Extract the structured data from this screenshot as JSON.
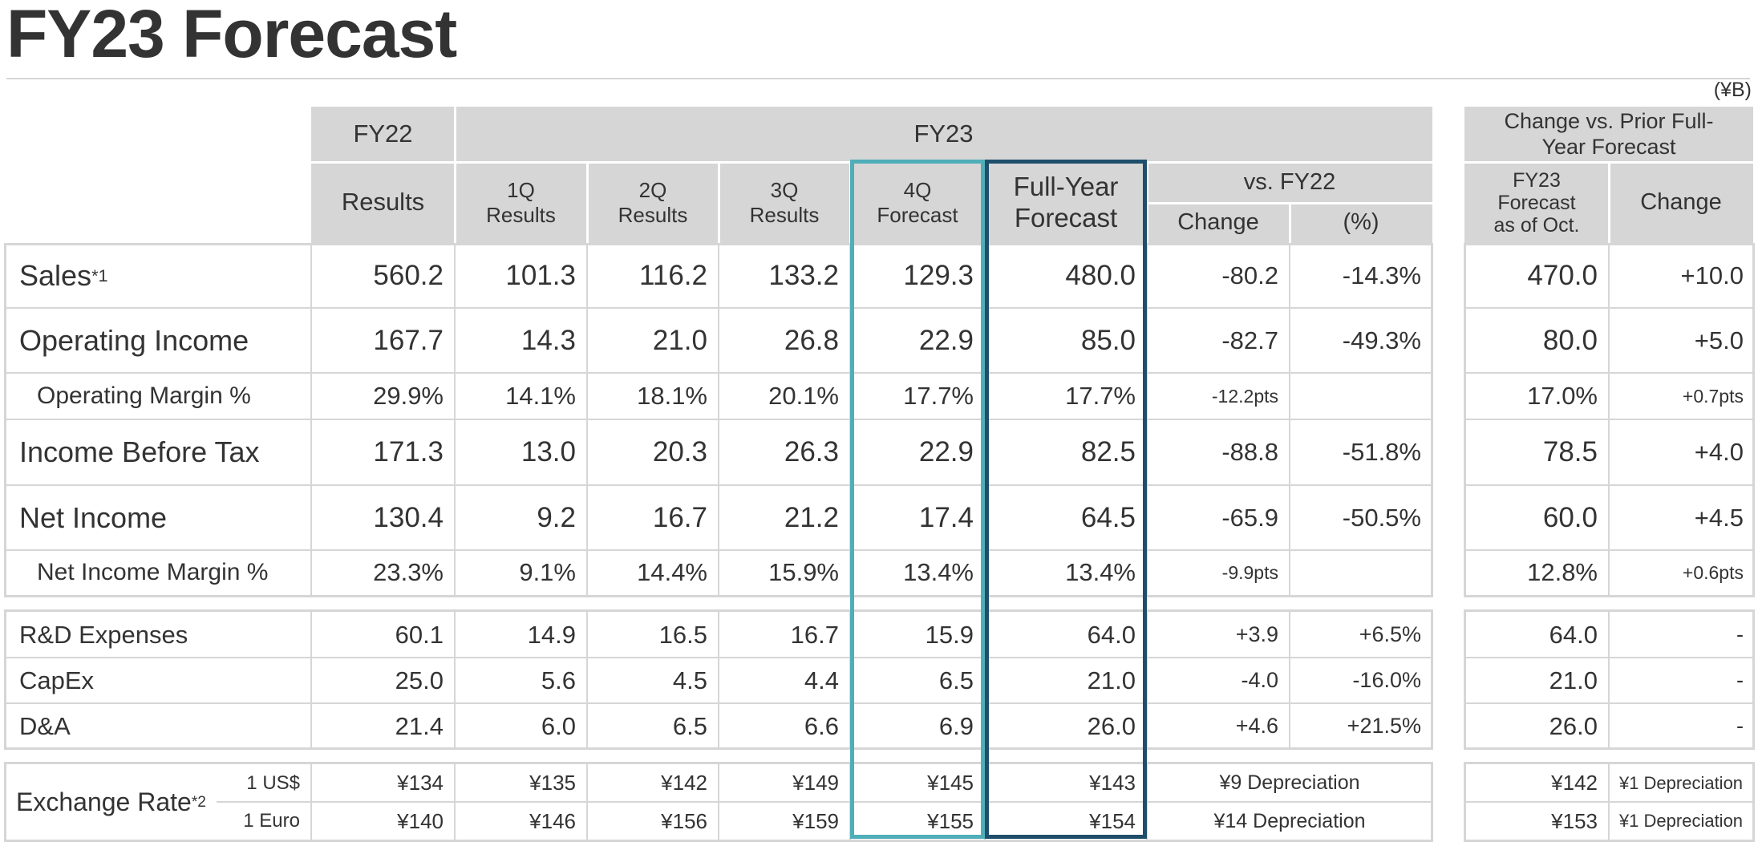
{
  "page": {
    "title": "FY23 Forecast",
    "unit": "(¥B)"
  },
  "header": {
    "fy22": "FY22",
    "fy23": "FY23",
    "change_prior": "Change vs. Prior Full-Year Forecast",
    "results": "Results",
    "q1": "1Q Results",
    "q2": "2Q Results",
    "q3": "3Q Results",
    "q4": "4Q Forecast",
    "full_year": "Full-Year Forecast",
    "vs_fy22": "vs. FY22",
    "change": "Change",
    "pct": "(%)",
    "fy23_oct": "FY23 Forecast as of Oct.",
    "change2": "Change"
  },
  "rows": [
    {
      "label": "Sales",
      "note": "*1",
      "fy22": "560.2",
      "q1": "101.3",
      "q2": "116.2",
      "q3": "133.2",
      "q4": "129.3",
      "fy": "480.0",
      "chg": "-80.2",
      "pct": "-14.3%",
      "oct": "470.0",
      "chg2": "+10.0"
    },
    {
      "label": "Operating Income",
      "note": "",
      "fy22": "167.7",
      "q1": "14.3",
      "q2": "21.0",
      "q3": "26.8",
      "q4": "22.9",
      "fy": "85.0",
      "chg": "-82.7",
      "pct": "-49.3%",
      "oct": "80.0",
      "chg2": "+5.0"
    },
    {
      "label": "Operating Margin %",
      "note": "",
      "fy22": "29.9%",
      "q1": "14.1%",
      "q2": "18.1%",
      "q3": "20.1%",
      "q4": "17.7%",
      "fy": "17.7%",
      "chg": "-12.2pts",
      "pct": "",
      "oct": "17.0%",
      "chg2": "+0.7pts"
    },
    {
      "label": "Income Before Tax",
      "note": "",
      "fy22": "171.3",
      "q1": "13.0",
      "q2": "20.3",
      "q3": "26.3",
      "q4": "22.9",
      "fy": "82.5",
      "chg": "-88.8",
      "pct": "-51.8%",
      "oct": "78.5",
      "chg2": "+4.0"
    },
    {
      "label": "Net Income",
      "note": "",
      "fy22": "130.4",
      "q1": "9.2",
      "q2": "16.7",
      "q3": "21.2",
      "q4": "17.4",
      "fy": "64.5",
      "chg": "-65.9",
      "pct": "-50.5%",
      "oct": "60.0",
      "chg2": "+4.5"
    },
    {
      "label": "Net Income Margin %",
      "note": "",
      "fy22": "23.3%",
      "q1": "9.1%",
      "q2": "14.4%",
      "q3": "15.9%",
      "q4": "13.4%",
      "fy": "13.4%",
      "chg": "-9.9pts",
      "pct": "",
      "oct": "12.8%",
      "chg2": "+0.6pts"
    },
    {
      "label": "R&D Expenses",
      "note": "",
      "fy22": "60.1",
      "q1": "14.9",
      "q2": "16.5",
      "q3": "16.7",
      "q4": "15.9",
      "fy": "64.0",
      "chg": "+3.9",
      "pct": "+6.5%",
      "oct": "64.0",
      "chg2": "-"
    },
    {
      "label": "CapEx",
      "note": "",
      "fy22": "25.0",
      "q1": "5.6",
      "q2": "4.5",
      "q3": "4.4",
      "q4": "6.5",
      "fy": "21.0",
      "chg": "-4.0",
      "pct": "-16.0%",
      "oct": "21.0",
      "chg2": "-"
    },
    {
      "label": "D&A",
      "note": "",
      "fy22": "21.4",
      "q1": "6.0",
      "q2": "6.5",
      "q3": "6.6",
      "q4": "6.9",
      "fy": "26.0",
      "chg": "+4.6",
      "pct": "+21.5%",
      "oct": "26.0",
      "chg2": "-"
    }
  ],
  "fx": {
    "label": "Exchange Rate",
    "note": "*2",
    "rows": [
      {
        "sub": "1 US$",
        "fy22": "¥134",
        "q1": "¥135",
        "q2": "¥142",
        "q3": "¥149",
        "q4": "¥145",
        "fy": "¥143",
        "chg": "¥9 Depreciation",
        "oct": "¥142",
        "chg2": "¥1 Depreciation"
      },
      {
        "sub": "1 Euro",
        "fy22": "¥140",
        "q1": "¥146",
        "q2": "¥156",
        "q3": "¥159",
        "q4": "¥155",
        "fy": "¥154",
        "chg": "¥14 Depreciation",
        "oct": "¥153",
        "chg2": "¥1 Depreciation"
      }
    ]
  },
  "colors": {
    "header_bg": "#d6d6d6",
    "q4_outline": "#4faeb8",
    "full_year_outline": "#1f4e6b",
    "text": "#333333"
  }
}
